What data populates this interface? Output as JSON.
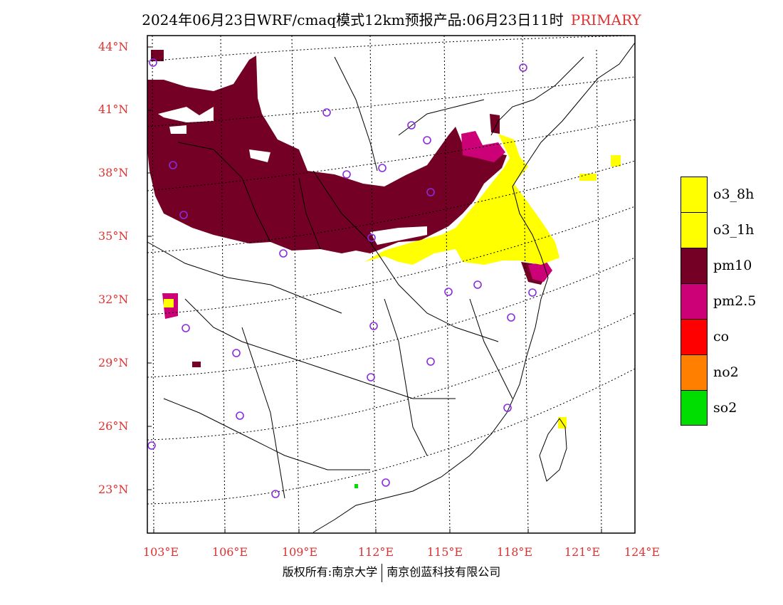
{
  "title": {
    "main": "2024年06月23日WRF/cmaq模式12km预报产品:06月23日11时",
    "tag": "PRIMARY"
  },
  "map": {
    "lat_labels": [
      "44°N",
      "41°N",
      "38°N",
      "35°N",
      "32°N",
      "29°N",
      "26°N",
      "23°N"
    ],
    "lon_labels": [
      "103°E",
      "106°E",
      "109°E",
      "112°E",
      "115°E",
      "118°E",
      "121°E",
      "124°E"
    ],
    "colors": {
      "pm10": "#750026",
      "pm25": "#cc0077",
      "o3": "#ffff00",
      "so2": "#00dd00",
      "station": "#8a2be2",
      "grid": "#000000"
    }
  },
  "legend": [
    {
      "label": "o3_8h",
      "color": "#ffff00"
    },
    {
      "label": "o3_1h",
      "color": "#ffff00"
    },
    {
      "label": "pm10",
      "color": "#750026"
    },
    {
      "label": "pm2.5",
      "color": "#cc0077"
    },
    {
      "label": "co",
      "color": "#ff0000"
    },
    {
      "label": "no2",
      "color": "#ff7f00"
    },
    {
      "label": "so2",
      "color": "#00dd00"
    }
  ],
  "footer": {
    "left": "版权所有:南京大学",
    "right": "南京创蓝科技有限公司"
  }
}
